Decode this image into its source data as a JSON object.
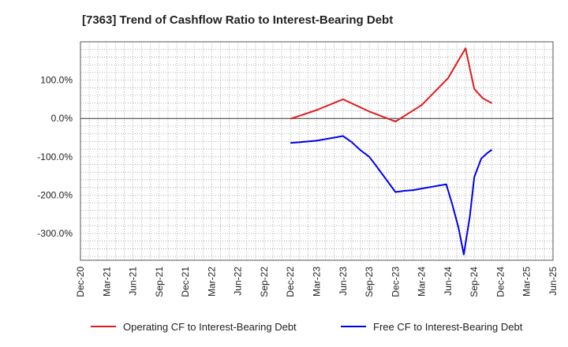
{
  "chart_data": {
    "type": "line",
    "title": "[7363]  Trend of Cashflow Ratio to Interest-Bearing Debt",
    "xlabel": "",
    "ylabel": "",
    "ylim": [
      -370,
      200
    ],
    "yticks": [
      {
        "value": 100,
        "label": "100.0%"
      },
      {
        "value": 0,
        "label": "0.0%"
      },
      {
        "value": -100,
        "label": "-100.0%"
      },
      {
        "value": -200,
        "label": "-200.0%"
      },
      {
        "value": -300,
        "label": "-300.0%"
      }
    ],
    "xticks": [
      "Dec-20",
      "Mar-21",
      "Jun-21",
      "Sep-21",
      "Dec-21",
      "Mar-22",
      "Jun-22",
      "Sep-22",
      "Dec-22",
      "Mar-23",
      "Jun-23",
      "Sep-23",
      "Dec-23",
      "Mar-24",
      "Jun-24",
      "Sep-24",
      "Dec-24",
      "Mar-25",
      "Jun-25"
    ],
    "x_unit": "months since Dec-20",
    "xlim": [
      0,
      54
    ],
    "grid": true,
    "legend_position": "bottom",
    "series": [
      {
        "name": "Operating CF to Interest-Bearing Debt",
        "color": "#e31a1c",
        "x": [
          24,
          27,
          30,
          33,
          36,
          39,
          42,
          44,
          45,
          46,
          47
        ],
        "values": [
          -1,
          22,
          50,
          18,
          -8,
          35,
          105,
          183,
          77,
          52,
          40
        ]
      },
      {
        "name": "Free CF to Interest-Bearing Debt",
        "color": "#0000ee",
        "x": [
          24,
          27,
          30,
          31,
          32,
          33,
          34,
          36,
          37,
          38,
          39,
          41,
          41.8,
          42.5,
          43.2,
          43.8,
          44.5,
          45,
          45.8,
          46.5,
          47
        ],
        "values": [
          -64,
          -58,
          -46,
          -62,
          -83,
          -100,
          -130,
          -192,
          -189,
          -187,
          -183,
          -175,
          -172,
          -225,
          -285,
          -355,
          -255,
          -153,
          -105,
          -90,
          -82
        ]
      }
    ]
  }
}
